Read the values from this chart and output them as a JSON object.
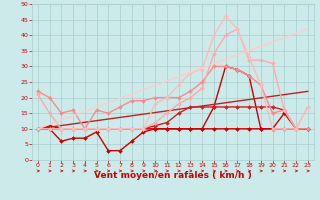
{
  "background_color": "#cceaea",
  "grid_color": "#aacccc",
  "xlabel": "Vent moyen/en rafales ( km/h )",
  "xlabel_color": "#cc0000",
  "xlabel_fontsize": 6.5,
  "tick_color": "#cc0000",
  "xlim": [
    -0.5,
    23.5
  ],
  "ylim": [
    0,
    50
  ],
  "xticks": [
    0,
    1,
    2,
    3,
    4,
    5,
    6,
    7,
    8,
    9,
    10,
    11,
    12,
    13,
    14,
    15,
    16,
    17,
    18,
    19,
    20,
    21,
    22,
    23
  ],
  "yticks": [
    0,
    5,
    10,
    15,
    20,
    25,
    30,
    35,
    40,
    45,
    50
  ],
  "lines": [
    {
      "x": [
        0,
        1,
        2,
        3,
        4,
        5,
        6,
        7,
        8,
        9,
        10,
        11,
        12,
        13,
        14,
        15,
        16,
        17,
        18,
        19,
        20,
        21,
        22,
        23
      ],
      "y": [
        10,
        11,
        10,
        10,
        10,
        10,
        10,
        10,
        10,
        10,
        10,
        10,
        10,
        10,
        10,
        10,
        10,
        10,
        10,
        10,
        10,
        10,
        10,
        10
      ],
      "color": "#cc0000",
      "lw": 1.0,
      "marker": "D",
      "ms": 2.0
    },
    {
      "x": [
        0,
        1,
        2,
        3,
        4,
        5,
        6,
        7,
        8,
        9,
        10,
        11,
        12,
        13,
        14,
        15,
        16,
        17,
        18,
        19,
        20,
        21,
        22,
        23
      ],
      "y": [
        10,
        10,
        6,
        7,
        7,
        9,
        3,
        3,
        6,
        9,
        10,
        10,
        10,
        10,
        10,
        17,
        30,
        29,
        27,
        10,
        10,
        15,
        10,
        10
      ],
      "color": "#cc0000",
      "lw": 1.0,
      "marker": "D",
      "ms": 2.0
    },
    {
      "x": [
        0,
        23
      ],
      "y": [
        10,
        22
      ],
      "color": "#bb2222",
      "lw": 1.0,
      "marker": null,
      "ms": 0
    },
    {
      "x": [
        0,
        1,
        2,
        3,
        4,
        5,
        6,
        7,
        8,
        9,
        10,
        11,
        12,
        13,
        14,
        15,
        16,
        17,
        18,
        19,
        20,
        21,
        22,
        23
      ],
      "y": [
        10,
        10,
        10,
        10,
        10,
        10,
        10,
        10,
        10,
        10,
        11,
        12,
        15,
        17,
        17,
        17,
        17,
        17,
        17,
        17,
        17,
        16,
        10,
        10
      ],
      "color": "#cc2222",
      "lw": 1.0,
      "marker": "D",
      "ms": 2.0
    },
    {
      "x": [
        0,
        1,
        2,
        3,
        4,
        5,
        6,
        7,
        8,
        9,
        10,
        11,
        12,
        13,
        14,
        15,
        16,
        17,
        18,
        19,
        20,
        21,
        22,
        23
      ],
      "y": [
        22,
        20,
        15,
        16,
        10,
        16,
        15,
        17,
        19,
        19,
        20,
        20,
        20,
        22,
        25,
        30,
        30,
        29,
        27,
        24,
        15,
        16,
        10,
        10
      ],
      "color": "#ff8888",
      "lw": 1.0,
      "marker": "D",
      "ms": 2.0
    },
    {
      "x": [
        0,
        1,
        2,
        3,
        4,
        5,
        6,
        7,
        8,
        9,
        10,
        11,
        12,
        13,
        14,
        15,
        16,
        17,
        18,
        19,
        20,
        21,
        22,
        23
      ],
      "y": [
        21,
        15,
        10,
        10,
        10,
        10,
        10,
        10,
        10,
        10,
        12,
        15,
        18,
        20,
        23,
        34,
        40,
        42,
        32,
        32,
        31,
        16,
        10,
        17
      ],
      "color": "#ffaaaa",
      "lw": 1.0,
      "marker": "D",
      "ms": 2.0
    },
    {
      "x": [
        0,
        1,
        2,
        3,
        4,
        5,
        6,
        7,
        8,
        9,
        10,
        11,
        12,
        13,
        14,
        15,
        16,
        17,
        18,
        19,
        20,
        21,
        22,
        23
      ],
      "y": [
        10,
        10,
        10,
        10,
        10,
        10,
        10,
        10,
        10,
        10,
        18,
        20,
        24,
        28,
        29,
        40,
        46,
        42,
        33,
        24,
        10,
        10,
        10,
        17
      ],
      "color": "#ffbbbb",
      "lw": 1.0,
      "marker": "D",
      "ms": 2.0
    },
    {
      "x": [
        0,
        23
      ],
      "y": [
        10,
        42
      ],
      "color": "#ffcccc",
      "lw": 1.0,
      "marker": null,
      "ms": 0
    }
  ]
}
